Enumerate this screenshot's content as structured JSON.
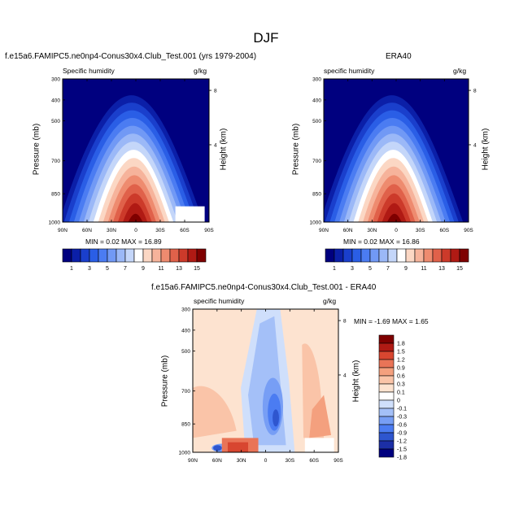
{
  "figure": {
    "title": "DJF",
    "colors": {
      "qv": [
        "#00007f",
        "#0b1fa8",
        "#1a3fcc",
        "#2a5ee6",
        "#4b7cf2",
        "#7199f5",
        "#9bb8f7",
        "#c4d6f9",
        "#ffffff",
        "#fbd7c4",
        "#f6b39b",
        "#ee8b6f",
        "#e0614a",
        "#cc3a2a",
        "#b01a14",
        "#7f0000"
      ],
      "diff": [
        "#00007f",
        "#1c2fa6",
        "#2e56cf",
        "#4b7cf2",
        "#779ef5",
        "#a4c0f8",
        "#cfdffb",
        "#ffffff",
        "#fde3d0",
        "#fac4a8",
        "#f4a07e",
        "#e97457",
        "#d84630",
        "#b01a14",
        "#7f0000"
      ]
    }
  },
  "chart_data": [
    {
      "type": "heatmap",
      "title": "f.e15a6.FAMIPC5.ne0np4-Conus30x4.Club_Test.001 (yrs 1979-2004)",
      "left_label": "Specific humidity",
      "right_label": "g/kg",
      "ylabel": "Pressure (mb)",
      "ylabel_right": "Height (km)",
      "x_ticks": [
        "90N",
        "60N",
        "30N",
        "0",
        "30S",
        "60S",
        "90S"
      ],
      "y_ticks": [
        "300",
        "400",
        "500",
        "700",
        "850",
        "1000"
      ],
      "y_ticks_right": [
        "8",
        "4"
      ],
      "stats": "MIN =  0.02  MAX = 16.89"
    },
    {
      "type": "heatmap",
      "title": "ERA40",
      "left_label": "specific humidity",
      "right_label": "g/kg",
      "ylabel": "Pressure (mb)",
      "ylabel_right": "Height (km)",
      "x_ticks": [
        "90N",
        "60N",
        "30N",
        "0",
        "30S",
        "60S",
        "90S"
      ],
      "y_ticks": [
        "300",
        "400",
        "500",
        "700",
        "850",
        "1000"
      ],
      "y_ticks_right": [
        "8",
        "4"
      ],
      "stats": "MIN =  0.02  MAX = 16.86"
    },
    {
      "type": "heatmap",
      "title": "f.e15a6.FAMIPC5.ne0np4-Conus30x4.Club_Test.001 - ERA40",
      "left_label": "specific humidity",
      "right_label": "g/kg",
      "ylabel": "Pressure (mb)",
      "ylabel_right": "Height (km)",
      "x_ticks": [
        "90N",
        "60N",
        "30N",
        "0",
        "30S",
        "60S",
        "90S"
      ],
      "y_ticks": [
        "300",
        "400",
        "500",
        "700",
        "850",
        "1000"
      ],
      "y_ticks_right": [
        "8",
        "4"
      ],
      "stats": "MIN = -1.69  MAX =   1.65"
    }
  ],
  "colorbar_top": {
    "labels": [
      "1",
      "3",
      "5",
      "7",
      "9",
      "11",
      "13",
      "15"
    ]
  },
  "colorbar_diff": {
    "labels": [
      "1.8",
      "1.5",
      "1.2",
      "0.9",
      "0.6",
      "0.3",
      "0.1",
      "0",
      "-0.1",
      "-0.3",
      "-0.6",
      "-0.9",
      "-1.2",
      "-1.5",
      "-1.8"
    ]
  }
}
